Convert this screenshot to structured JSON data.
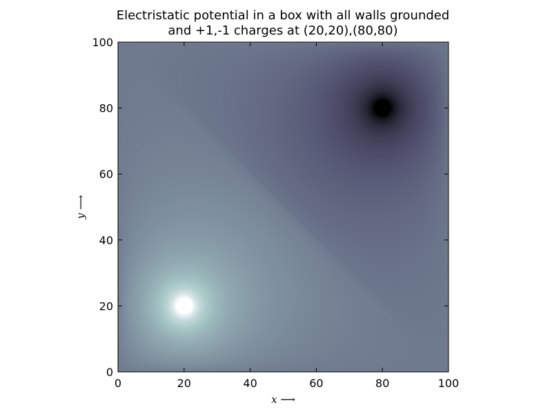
{
  "chart_data": {
    "type": "heatmap",
    "title_lines": [
      "Electristatic potential in a box with all walls grounded",
      "and +1,-1 charges at (20,20),(80,80)"
    ],
    "xlabel": "x ⟶",
    "ylabel": "y ⟶",
    "xlim": [
      0,
      100
    ],
    "ylim": [
      0,
      100
    ],
    "xticks": [
      0,
      20,
      40,
      60,
      80,
      100
    ],
    "yticks": [
      0,
      20,
      40,
      60,
      80,
      100
    ],
    "charges": [
      {
        "x": 20,
        "y": 20,
        "q": 1
      },
      {
        "x": 80,
        "y": 80,
        "q": -1
      }
    ],
    "colormap": "bone",
    "grid": false
  }
}
